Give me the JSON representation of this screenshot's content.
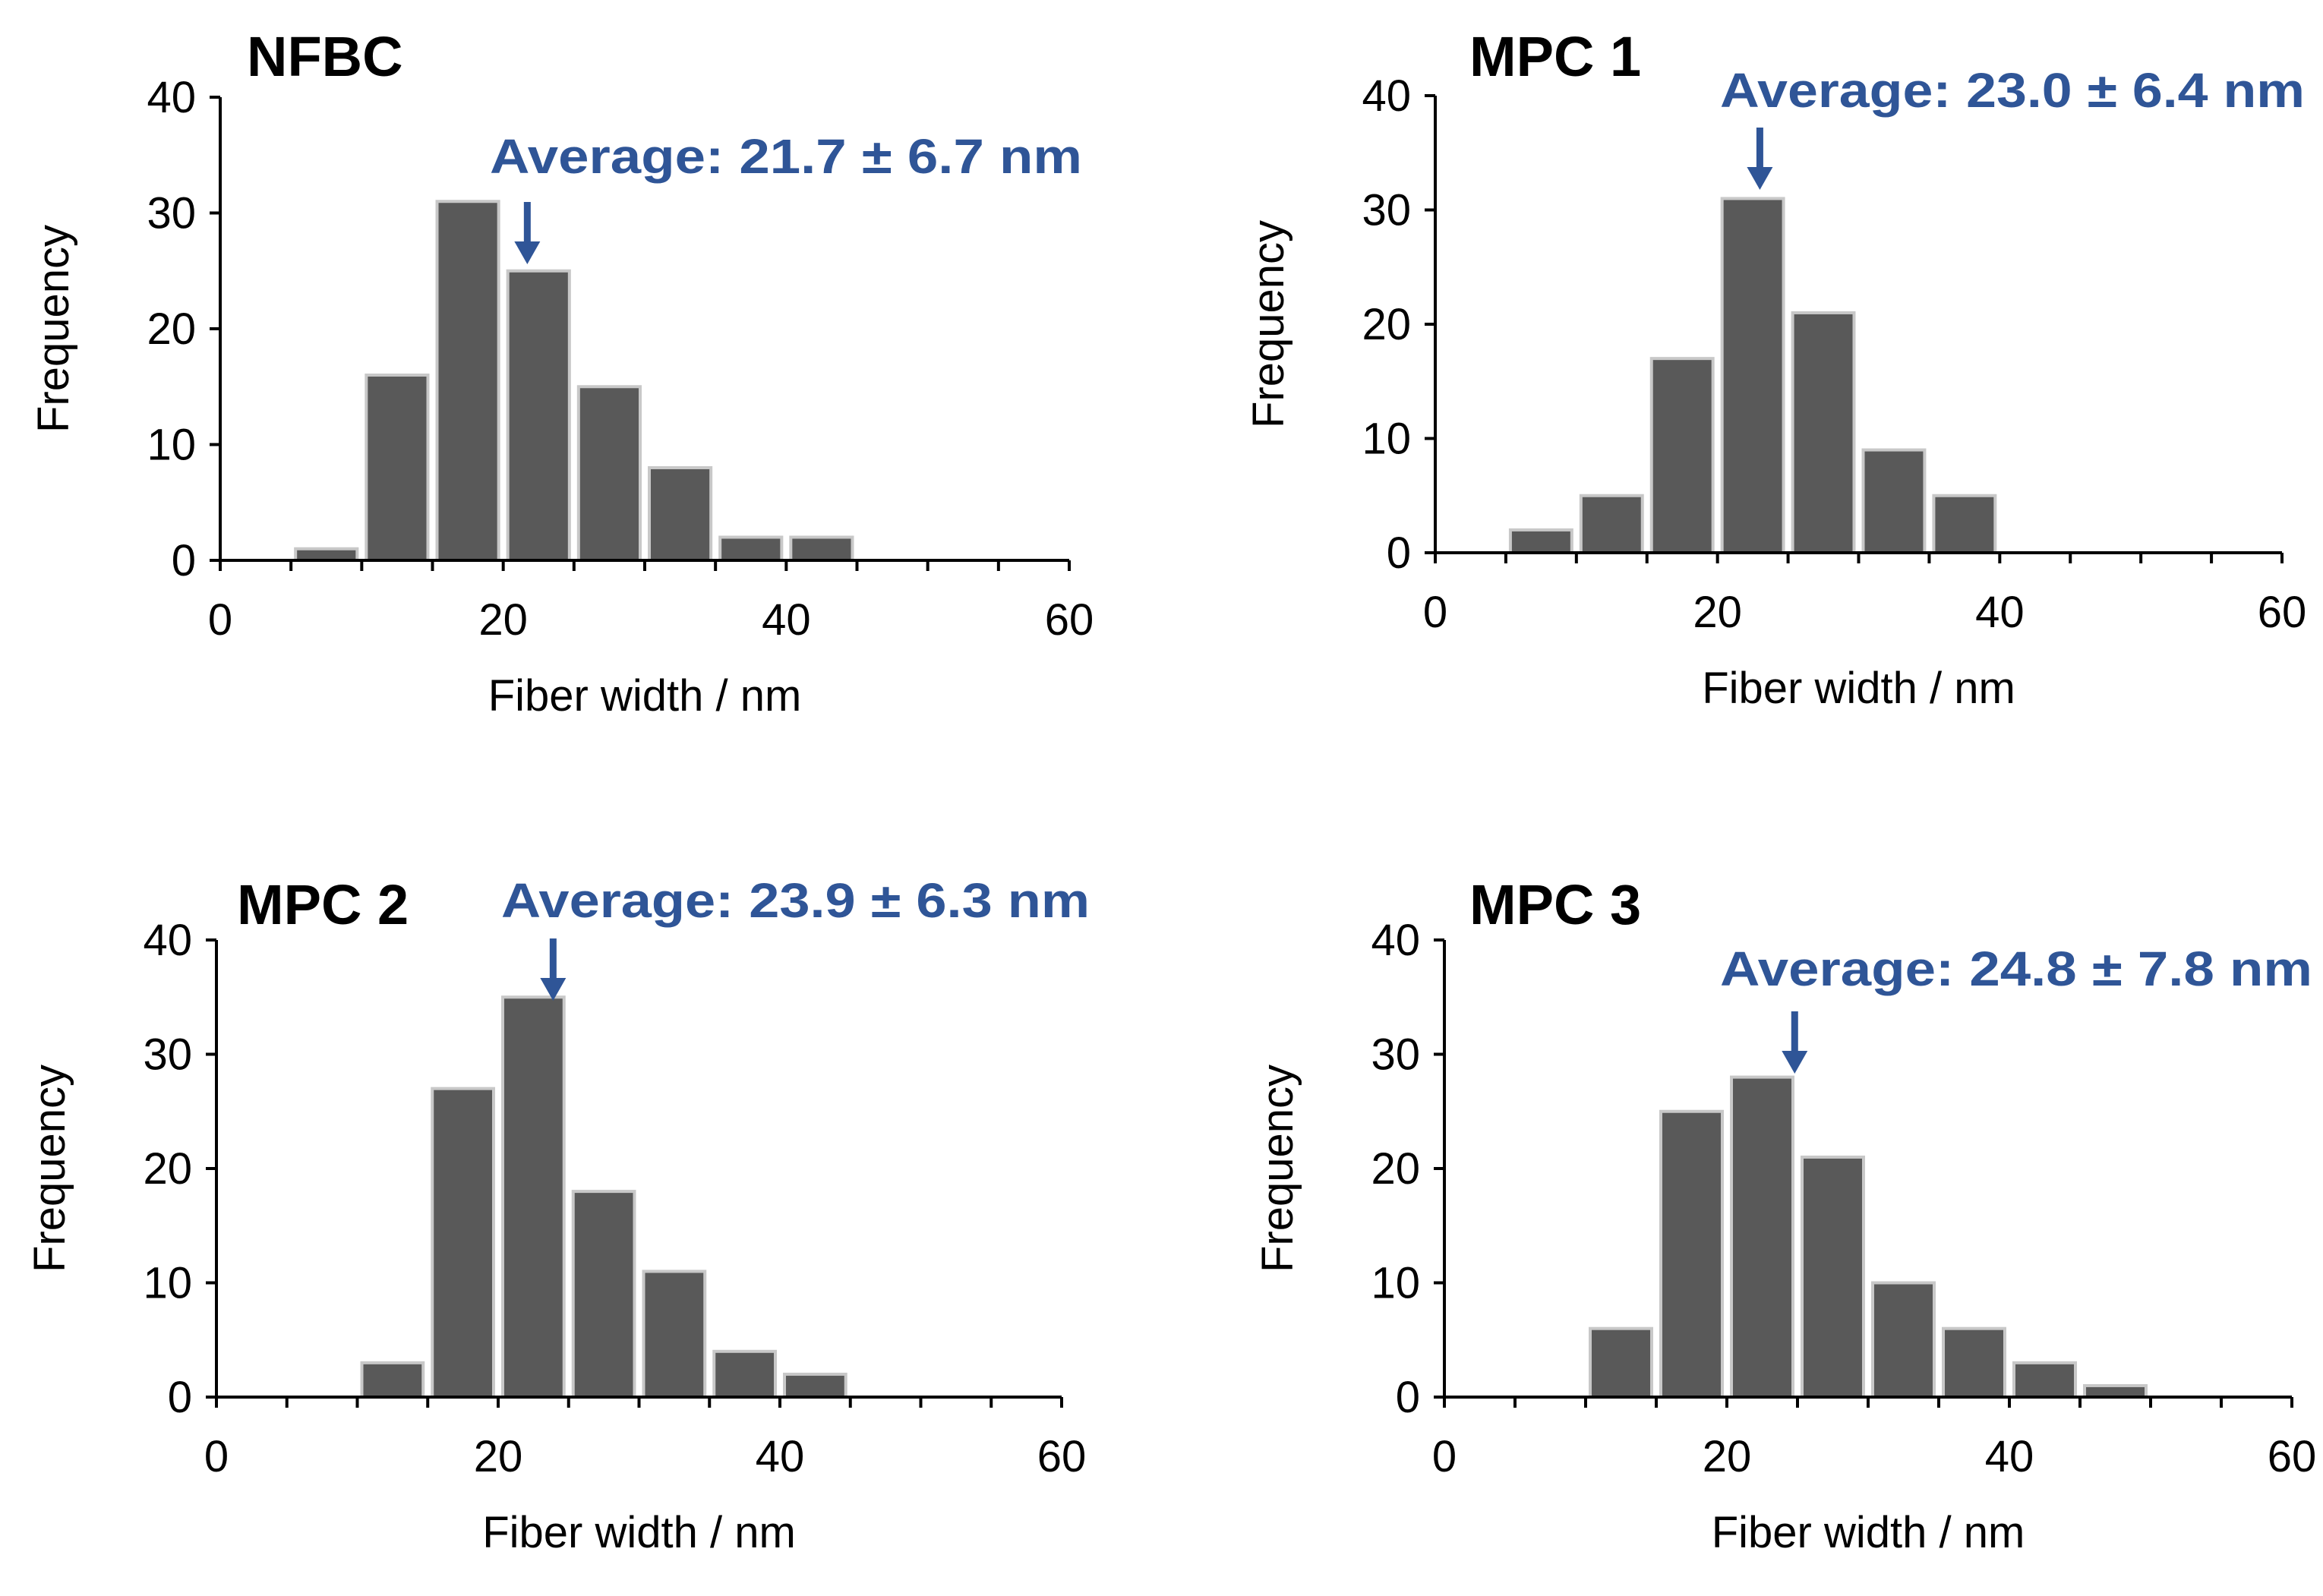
{
  "colors": {
    "bar_fill": "#595959",
    "bar_stroke": "#c8c8c8",
    "accent": "#2f5597",
    "axis": "#000000"
  },
  "chart_data": [
    {
      "type": "bar",
      "title": "NFBC",
      "annotation": "Average: 21.7 ± 6.7 nm",
      "mean": 21.7,
      "xlabel": "Fiber width / nm",
      "ylabel": "Frequency",
      "xlim": [
        0,
        60
      ],
      "ylim": [
        0,
        40
      ],
      "x_ticks": [
        "0",
        "20",
        "40",
        "60"
      ],
      "y_ticks": [
        "0",
        "10",
        "20",
        "30",
        "40"
      ],
      "bin_width": 5,
      "bin_centers": [
        7.5,
        12.5,
        17.5,
        22.5,
        27.5,
        32.5,
        37.5,
        42.5
      ],
      "values": [
        1,
        16,
        31,
        25,
        15,
        8,
        2,
        2
      ]
    },
    {
      "type": "bar",
      "title": "MPC 1",
      "annotation": "Average: 23.0 ± 6.4 nm",
      "mean": 23.0,
      "xlabel": "Fiber width / nm",
      "ylabel": "Frequency",
      "xlim": [
        0,
        60
      ],
      "ylim": [
        0,
        40
      ],
      "x_ticks": [
        "0",
        "20",
        "40",
        "60"
      ],
      "y_ticks": [
        "0",
        "10",
        "20",
        "30",
        "40"
      ],
      "bin_width": 5,
      "bin_centers": [
        7.5,
        12.5,
        17.5,
        22.5,
        27.5,
        32.5,
        37.5
      ],
      "values": [
        2,
        5,
        17,
        31,
        21,
        9,
        5
      ]
    },
    {
      "type": "bar",
      "title": "MPC 2",
      "annotation": "Average: 23.9 ± 6.3 nm",
      "mean": 23.9,
      "xlabel": "Fiber width / nm",
      "ylabel": "Frequency",
      "xlim": [
        0,
        60
      ],
      "ylim": [
        0,
        40
      ],
      "x_ticks": [
        "0",
        "20",
        "40",
        "60"
      ],
      "y_ticks": [
        "0",
        "10",
        "20",
        "30",
        "40"
      ],
      "bin_width": 5,
      "bin_centers": [
        12.5,
        17.5,
        22.5,
        27.5,
        32.5,
        37.5,
        42.5
      ],
      "values": [
        3,
        27,
        35,
        18,
        11,
        4,
        2
      ]
    },
    {
      "type": "bar",
      "title": "MPC 3",
      "annotation": "Average: 24.8 ± 7.8 nm",
      "mean": 24.8,
      "xlabel": "Fiber width / nm",
      "ylabel": "Frequency",
      "xlim": [
        0,
        60
      ],
      "ylim": [
        0,
        40
      ],
      "x_ticks": [
        "0",
        "20",
        "40",
        "60"
      ],
      "y_ticks": [
        "0",
        "10",
        "20",
        "30",
        "40"
      ],
      "bin_width": 5,
      "bin_centers": [
        12.5,
        17.5,
        22.5,
        27.5,
        32.5,
        37.5,
        42.5,
        47.5
      ],
      "values": [
        6,
        25,
        28,
        21,
        10,
        6,
        3,
        1
      ]
    }
  ]
}
